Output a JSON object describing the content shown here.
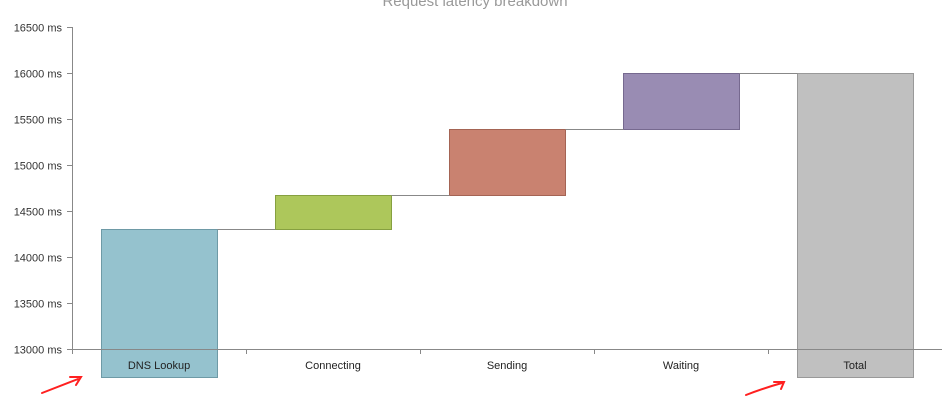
{
  "chart_data": {
    "type": "waterfall",
    "title": "Request latency breakdown",
    "ylim": [
      13000,
      16500
    ],
    "y_ticks": [
      13000,
      13500,
      14000,
      14500,
      15000,
      15500,
      16000,
      16500
    ],
    "y_tick_labels": [
      "13000 ms",
      "13500 ms",
      "14000 ms",
      "14500 ms",
      "15000 ms",
      "15500 ms",
      "16000 ms",
      "16500 ms"
    ],
    "categories": [
      "DNS Lookup",
      "Connecting",
      "Sending",
      "Waiting",
      "Total"
    ],
    "bars": [
      {
        "label": "DNS Lookup",
        "start": 0,
        "end": 14300,
        "color": "#95c2ce",
        "stroke": "#6e9aa6"
      },
      {
        "label": "Connecting",
        "start": 14300,
        "end": 14670,
        "color": "#adc75b",
        "stroke": "#86a040"
      },
      {
        "label": "Sending",
        "start": 14670,
        "end": 15390,
        "color": "#c98270",
        "stroke": "#a46454"
      },
      {
        "label": "Waiting",
        "start": 15390,
        "end": 16000,
        "color": "#998cb3",
        "stroke": "#76698f"
      },
      {
        "label": "Total",
        "start": 0,
        "end": 16000,
        "color": "#c0c0c0",
        "stroke": "#999999"
      }
    ],
    "connectors": true,
    "grid": false,
    "annotations": [
      "red-arrow-near-dns-lookup",
      "red-arrow-near-total"
    ]
  }
}
